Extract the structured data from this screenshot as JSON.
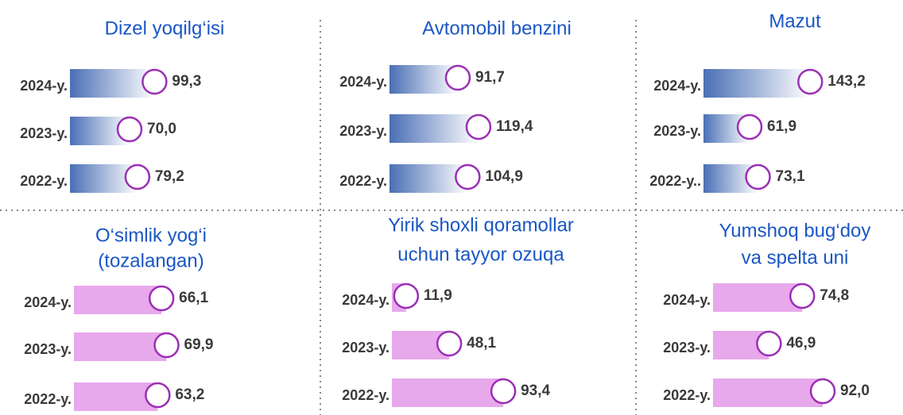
{
  "chart_data": [
    {
      "type": "bar",
      "orientation": "horizontal",
      "title": [
        "Dizel yoqilg‘isi"
      ],
      "categories": [
        "2024-y.",
        "2023-y.",
        "2022-y."
      ],
      "values": [
        99.3,
        70.0,
        79.2
      ],
      "value_labels": [
        "99,3",
        "70,0",
        "79,2"
      ],
      "color": "#4a6fb5",
      "gradient": true,
      "xlim": [
        0,
        140
      ]
    },
    {
      "type": "bar",
      "orientation": "horizontal",
      "title": [
        "Avtomobil benzini"
      ],
      "categories": [
        "2024-y.",
        "2023-y.",
        "2022-y."
      ],
      "values": [
        91.7,
        119.4,
        104.9
      ],
      "value_labels": [
        "91,7",
        "119,4",
        "104,9"
      ],
      "color": "#4a6fb5",
      "gradient": true,
      "xlim": [
        0,
        160
      ]
    },
    {
      "type": "bar",
      "orientation": "horizontal",
      "title": [
        "Mazut"
      ],
      "categories": [
        "2024-y.",
        "2023-y.",
        "2022-y.."
      ],
      "values": [
        143.2,
        61.9,
        73.1
      ],
      "value_labels": [
        "143,2",
        "61,9",
        "73,1"
      ],
      "color": "#4a6fb5",
      "gradient": true,
      "xlim": [
        0,
        160
      ]
    },
    {
      "type": "bar",
      "orientation": "horizontal",
      "title": [
        "O‘simlik yog‘i",
        "(tozalangan)"
      ],
      "categories": [
        "2024-y.",
        "2023-y.",
        "2022-y."
      ],
      "values": [
        66.1,
        69.9,
        63.2
      ],
      "value_labels": [
        "66,1",
        "69,9",
        "63,2"
      ],
      "color": "#e8a8ec",
      "gradient": false,
      "xlim": [
        0,
        90
      ]
    },
    {
      "type": "bar",
      "orientation": "horizontal",
      "title": [
        "Yirik shoxli qoramollar",
        "uchun tayyor ozuqa"
      ],
      "categories": [
        "2024-y.",
        "2023-y.",
        "2022-y."
      ],
      "values": [
        11.9,
        48.1,
        93.4
      ],
      "value_labels": [
        "11,9",
        "48,1",
        "93,4"
      ],
      "color": "#e8a8ec",
      "gradient": false,
      "xlim": [
        0,
        100
      ]
    },
    {
      "type": "bar",
      "orientation": "horizontal",
      "title": [
        "Yumshoq bug‘doy",
        "va spelta uni"
      ],
      "categories": [
        "2024-y.",
        "2023-y.",
        "2022-y."
      ],
      "values": [
        74.8,
        46.9,
        92.0
      ],
      "value_labels": [
        "74,8",
        "46,9",
        "92,0"
      ],
      "color": "#e8a8ec",
      "gradient": false,
      "xlim": [
        0,
        100
      ]
    }
  ]
}
